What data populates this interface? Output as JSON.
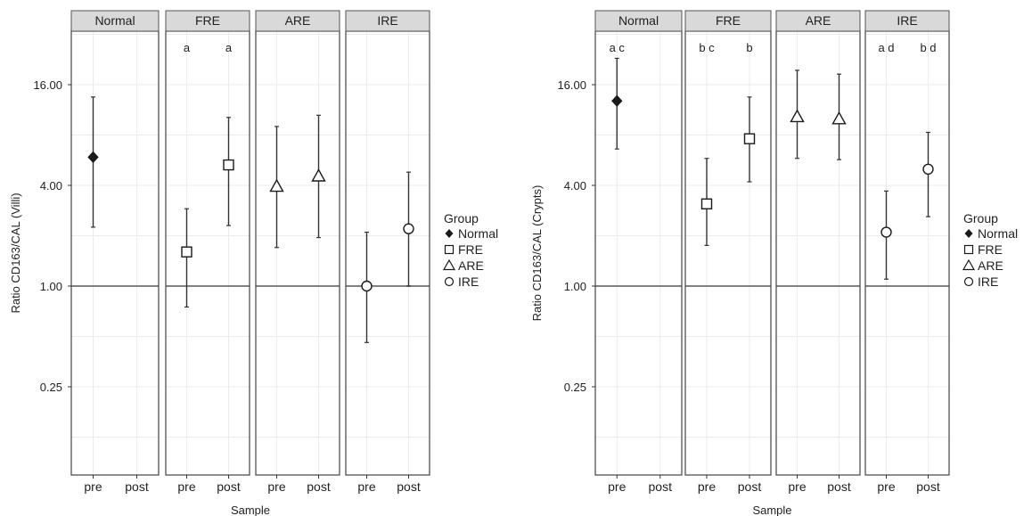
{
  "chart_data": [
    {
      "type": "scatter",
      "subtype": "faceted point-range (mean with interval), log2 y-axis",
      "xlabel": "Sample",
      "ylabel": "Ratio CD163/CAL (Villi)",
      "y_scale": "log2",
      "y_ticks": [
        {
          "value": 0.25,
          "label": "0.25"
        },
        {
          "value": 1,
          "label": "1.00"
        },
        {
          "value": 4,
          "label": "4.00"
        },
        {
          "value": 16,
          "label": "16.00"
        }
      ],
      "ylim": [
        0.08,
        40
      ],
      "reference_line": 1,
      "grid": true,
      "x_categories": [
        "pre",
        "post"
      ],
      "facets": [
        {
          "label": "Normal",
          "points": [
            {
              "x": "pre",
              "group": "Normal",
              "y": 5.9,
              "low": 2.25,
              "high": 13.5
            }
          ],
          "annotations": []
        },
        {
          "label": "FRE",
          "points": [
            {
              "x": "pre",
              "group": "FRE",
              "y": 1.6,
              "low": 0.75,
              "high": 2.9
            },
            {
              "x": "post",
              "group": "FRE",
              "y": 5.3,
              "low": 2.3,
              "high": 10.2
            }
          ],
          "annotations": [
            {
              "x": "pre",
              "text": "a"
            },
            {
              "x": "post",
              "text": "a"
            }
          ]
        },
        {
          "label": "ARE",
          "points": [
            {
              "x": "pre",
              "group": "ARE",
              "y": 3.95,
              "low": 1.7,
              "high": 9.0
            },
            {
              "x": "post",
              "group": "ARE",
              "y": 4.55,
              "low": 1.95,
              "high": 10.5
            }
          ],
          "annotations": []
        },
        {
          "label": "IRE",
          "points": [
            {
              "x": "pre",
              "group": "IRE",
              "y": 1.0,
              "low": 0.46,
              "high": 2.1
            },
            {
              "x": "post",
              "group": "IRE",
              "y": 2.2,
              "low": 1.0,
              "high": 4.8
            }
          ],
          "annotations": []
        }
      ],
      "legend": {
        "title": "Group",
        "entries": [
          "Normal",
          "FRE",
          "ARE",
          "IRE"
        ],
        "placement": "right"
      }
    },
    {
      "type": "scatter",
      "subtype": "faceted point-range (mean with interval), log2 y-axis",
      "xlabel": "Sample",
      "ylabel": "Ratio CD163/CAL (Crypts)",
      "y_scale": "log2",
      "y_ticks": [
        {
          "value": 0.25,
          "label": "0.25"
        },
        {
          "value": 1,
          "label": "1.00"
        },
        {
          "value": 4,
          "label": "4.00"
        },
        {
          "value": 16,
          "label": "16.00"
        }
      ],
      "ylim": [
        0.08,
        40
      ],
      "reference_line": 1,
      "grid": true,
      "x_categories": [
        "pre",
        "post"
      ],
      "facets": [
        {
          "label": "Normal",
          "points": [
            {
              "x": "pre",
              "group": "Normal",
              "y": 12.8,
              "low": 6.6,
              "high": 23.0
            }
          ],
          "annotations": [
            {
              "x": "pre",
              "text": "a c"
            }
          ]
        },
        {
          "label": "FRE",
          "points": [
            {
              "x": "pre",
              "group": "FRE",
              "y": 3.1,
              "low": 1.75,
              "high": 5.8
            },
            {
              "x": "post",
              "group": "FRE",
              "y": 7.6,
              "low": 4.2,
              "high": 13.5
            }
          ],
          "annotations": [
            {
              "x": "pre",
              "text": "b c"
            },
            {
              "x": "post",
              "text": "b"
            }
          ]
        },
        {
          "label": "ARE",
          "points": [
            {
              "x": "pre",
              "group": "ARE",
              "y": 10.3,
              "low": 5.8,
              "high": 19.5
            },
            {
              "x": "post",
              "group": "ARE",
              "y": 10.0,
              "low": 5.7,
              "high": 18.5
            }
          ],
          "annotations": []
        },
        {
          "label": "IRE",
          "points": [
            {
              "x": "pre",
              "group": "IRE",
              "y": 2.1,
              "low": 1.1,
              "high": 3.7
            },
            {
              "x": "post",
              "group": "IRE",
              "y": 5.0,
              "low": 2.6,
              "high": 8.3
            }
          ],
          "annotations": [
            {
              "x": "pre",
              "text": "a d"
            },
            {
              "x": "post",
              "text": "b d"
            }
          ]
        }
      ],
      "legend": {
        "title": "Group",
        "entries": [
          "Normal",
          "FRE",
          "ARE",
          "IRE"
        ],
        "placement": "right"
      }
    }
  ],
  "colors": {
    "strip_fill": "#d9d9d9",
    "strip_border": "#555555",
    "panel_border": "#444444",
    "grid": "#ebebeb",
    "reference_line": "#6f6f6f",
    "marker": "#1a1a1a",
    "errorbar": "#333333"
  }
}
